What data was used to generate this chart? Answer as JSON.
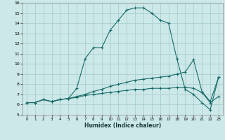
{
  "xlabel": "Humidex (Indice chaleur)",
  "background_color": "#cce8e8",
  "grid_color": "#aacfcf",
  "line_color": "#1a6b6b",
  "xlim": [
    -0.5,
    23.5
  ],
  "ylim": [
    5,
    16
  ],
  "xticks": [
    0,
    1,
    2,
    3,
    4,
    5,
    6,
    7,
    8,
    9,
    10,
    11,
    12,
    13,
    14,
    15,
    16,
    17,
    18,
    19,
    20,
    21,
    22,
    23
  ],
  "yticks": [
    5,
    6,
    7,
    8,
    9,
    10,
    11,
    12,
    13,
    14,
    15,
    16
  ],
  "line1_x": [
    0,
    1,
    2,
    3,
    4,
    5,
    6,
    7,
    8,
    9,
    10,
    11,
    12,
    13,
    14,
    15,
    16,
    17,
    18,
    19,
    20,
    21,
    22,
    23
  ],
  "line1_y": [
    6.2,
    6.2,
    6.5,
    6.3,
    6.5,
    6.6,
    7.6,
    10.5,
    11.6,
    11.6,
    13.3,
    14.3,
    15.3,
    15.5,
    15.5,
    15.0,
    14.3,
    14.0,
    10.5,
    7.5,
    7.0,
    6.2,
    5.5,
    8.7
  ],
  "line2_x": [
    0,
    1,
    2,
    3,
    4,
    5,
    6,
    7,
    8,
    9,
    10,
    11,
    12,
    13,
    14,
    15,
    16,
    17,
    18,
    19,
    20,
    21,
    22,
    23
  ],
  "line2_y": [
    6.2,
    6.2,
    6.5,
    6.3,
    6.5,
    6.6,
    6.8,
    7.0,
    7.3,
    7.5,
    7.8,
    8.0,
    8.2,
    8.4,
    8.5,
    8.6,
    8.7,
    8.8,
    9.0,
    9.2,
    10.4,
    7.3,
    6.3,
    8.7
  ],
  "line3_x": [
    0,
    1,
    2,
    3,
    4,
    5,
    6,
    7,
    8,
    9,
    10,
    11,
    12,
    13,
    14,
    15,
    16,
    17,
    18,
    19,
    20,
    21,
    22,
    23
  ],
  "line3_y": [
    6.2,
    6.2,
    6.5,
    6.3,
    6.5,
    6.6,
    6.7,
    6.9,
    7.0,
    7.1,
    7.2,
    7.3,
    7.4,
    7.5,
    7.5,
    7.6,
    7.6,
    7.6,
    7.7,
    7.7,
    7.6,
    7.2,
    6.2,
    6.8
  ]
}
